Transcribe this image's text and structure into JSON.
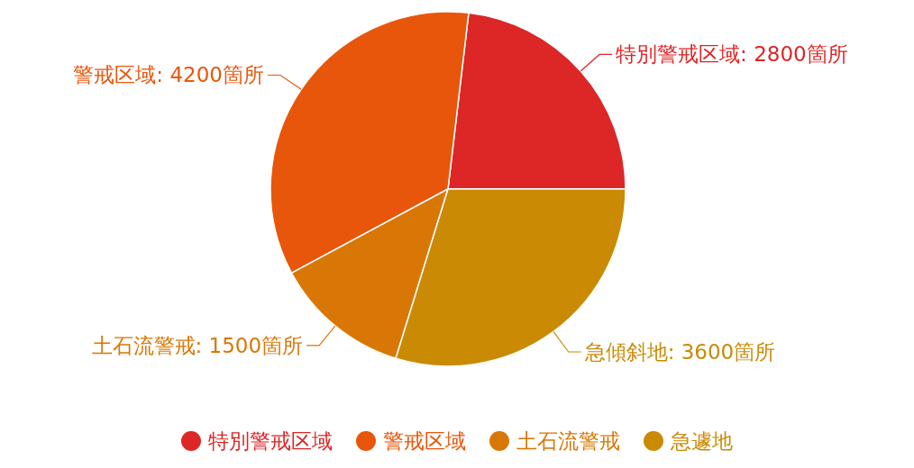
{
  "chart_data": {
    "type": "pie",
    "categories": [
      "特別警戒区域",
      "警戒区域",
      "土石流警戒",
      "急遽地"
    ],
    "values": [
      2800,
      4200,
      1500,
      3600
    ],
    "colors": [
      "#dd2626",
      "#e8560c",
      "#d97706",
      "#ca8a04"
    ],
    "value_labels": [
      "特別警戒区域: 2800箇所",
      "警戒区域: 4200箇所",
      "土石流警戒: 1500箇所",
      "急傾斜地: 3600箇所"
    ],
    "legend": "bottom"
  }
}
